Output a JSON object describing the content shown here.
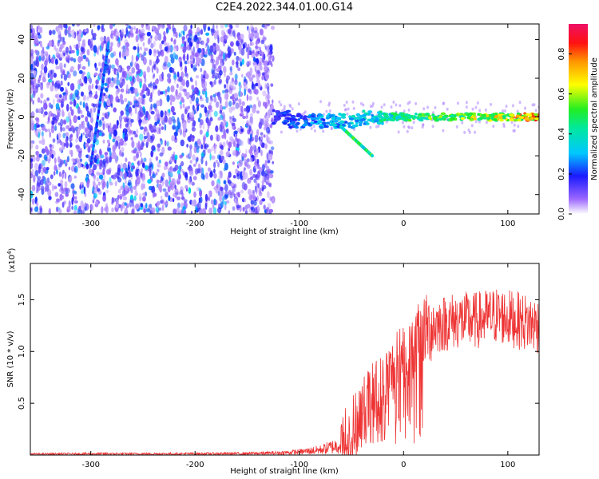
{
  "figure": {
    "title": "C2E4.2022.344.01.00.G14"
  },
  "chart_data": [
    {
      "type": "heatmap",
      "xlabel": "Height of straight line (km)",
      "ylabel": "Frequency (Hz)",
      "xlim": [
        -358,
        130
      ],
      "ylim": [
        -50,
        48
      ],
      "xticks": [
        -300,
        -200,
        -100,
        0,
        100
      ],
      "yticks": [
        -40,
        -20,
        0,
        20,
        40
      ],
      "xtick_labels": [
        "-300",
        "-200",
        "-100",
        "0",
        "100"
      ],
      "ytick_labels": [
        "-40",
        "-20",
        "0",
        "20",
        "40"
      ],
      "colorbar": {
        "label": "Normalized spectral amplitude",
        "range": [
          0,
          0.95
        ],
        "ticks": [
          0.0,
          0.2,
          0.4,
          0.6,
          0.8
        ],
        "tick_labels": [
          "0.0",
          "0.2",
          "0.4",
          "0.6",
          "0.8"
        ]
      },
      "features": [
        {
          "name": "noise",
          "x_range": [
            -358,
            -125
          ],
          "y_range": [
            -50,
            48
          ],
          "amplitude": 0.15
        },
        {
          "name": "signal-track",
          "x_range": [
            -125,
            130
          ],
          "y_center": 0,
          "amplitude": 0.85
        },
        {
          "name": "diagonal-streak",
          "x_range": [
            -300,
            -283
          ],
          "y_range": [
            -25,
            38
          ],
          "amplitude": 0.25
        },
        {
          "name": "descending-branch",
          "x_range": [
            -60,
            -30
          ],
          "y_range": [
            -20,
            -5
          ],
          "amplitude": 0.5
        }
      ]
    },
    {
      "type": "line",
      "xlabel": "Height of straight line (km)",
      "ylabel": "SNR (10 * v/v)",
      "y_multiplier": "(x10",
      "y_exponent": "4",
      "y_multiplier_close": ")",
      "xlim": [
        -358,
        130
      ],
      "ylim": [
        0,
        1.85
      ],
      "xticks": [
        -300,
        -200,
        -100,
        0,
        100
      ],
      "yticks": [
        0.5,
        1.0,
        1.5
      ],
      "xtick_labels": [
        "-300",
        "-200",
        "-100",
        "0",
        "100"
      ],
      "ytick_labels": [
        "0.5",
        "1.0",
        "1.5"
      ],
      "color": "#ee3333",
      "series": [
        {
          "x": [
            -358,
            -300,
            -250,
            -200,
            -150,
            -120,
            -100,
            -80,
            -60,
            -50,
            -40,
            -30,
            -20,
            -10,
            0,
            10,
            20,
            30,
            50,
            70,
            90,
            110,
            130
          ],
          "y": [
            0.01,
            0.012,
            0.012,
            0.013,
            0.015,
            0.02,
            0.03,
            0.05,
            0.1,
            0.22,
            0.4,
            0.55,
            0.65,
            0.8,
            0.95,
            1.05,
            1.2,
            1.25,
            1.3,
            1.3,
            1.35,
            1.3,
            1.25
          ]
        }
      ]
    }
  ]
}
